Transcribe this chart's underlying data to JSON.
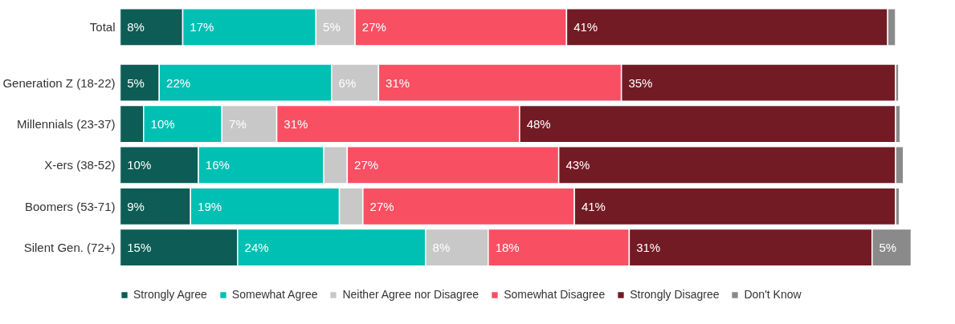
{
  "chart_data": {
    "type": "bar",
    "orientation": "horizontal",
    "stacked": true,
    "xlim": [
      0,
      101
    ],
    "tick_labels": "y",
    "grid": false,
    "legend": "bottom",
    "categories": [
      "Total",
      "Generation Z (18-22)",
      "Millennials (23-37)",
      "X-ers (38-52)",
      "Boomers (53-71)",
      "Silent Gen. (72+)"
    ],
    "series": [
      {
        "name": "Strongly Agree",
        "color": "#0d5c55",
        "values": [
          8,
          5,
          3,
          10,
          9,
          15
        ],
        "value_labels": [
          "8%",
          "5%",
          null,
          "10%",
          "9%",
          "15%"
        ]
      },
      {
        "name": "Somewhat Agree",
        "color": "#00bfb3",
        "values": [
          17,
          22,
          10,
          16,
          19,
          24
        ],
        "value_labels": [
          "17%",
          "22%",
          "10%",
          "16%",
          "19%",
          "24%"
        ]
      },
      {
        "name": "Neither Agree nor Disagree",
        "color": "#c8c8c8",
        "values": [
          5,
          6,
          7,
          3,
          3,
          8
        ],
        "value_labels": [
          "5%",
          "6%",
          "7%",
          null,
          null,
          "8%"
        ]
      },
      {
        "name": "Somewhat Disagree",
        "color": "#f94f63",
        "values": [
          27,
          31,
          31,
          27,
          27,
          18
        ],
        "value_labels": [
          "27%",
          "31%",
          "31%",
          "27%",
          "27%",
          "18%"
        ]
      },
      {
        "name": "Strongly Disagree",
        "color": "#721b24",
        "values": [
          41,
          35,
          48,
          43,
          41,
          31
        ],
        "value_labels": [
          "41%",
          "35%",
          "48%",
          "43%",
          "41%",
          "31%"
        ]
      },
      {
        "name": "Don't Know",
        "color": "#8a8a8a",
        "values": [
          1,
          0.4,
          0.6,
          1,
          0.5,
          5
        ],
        "value_labels": [
          null,
          null,
          null,
          null,
          null,
          "5%"
        ]
      }
    ]
  }
}
